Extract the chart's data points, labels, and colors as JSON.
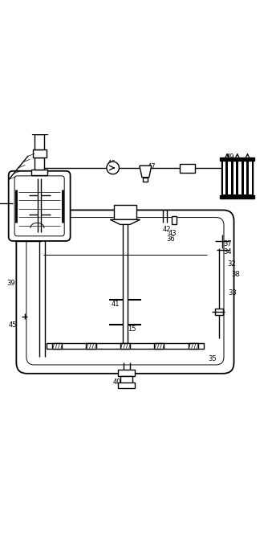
{
  "bg_color": "#ffffff",
  "line_color": "#000000",
  "line_width": 1.0,
  "fig_width": 3.39,
  "fig_height": 6.72
}
